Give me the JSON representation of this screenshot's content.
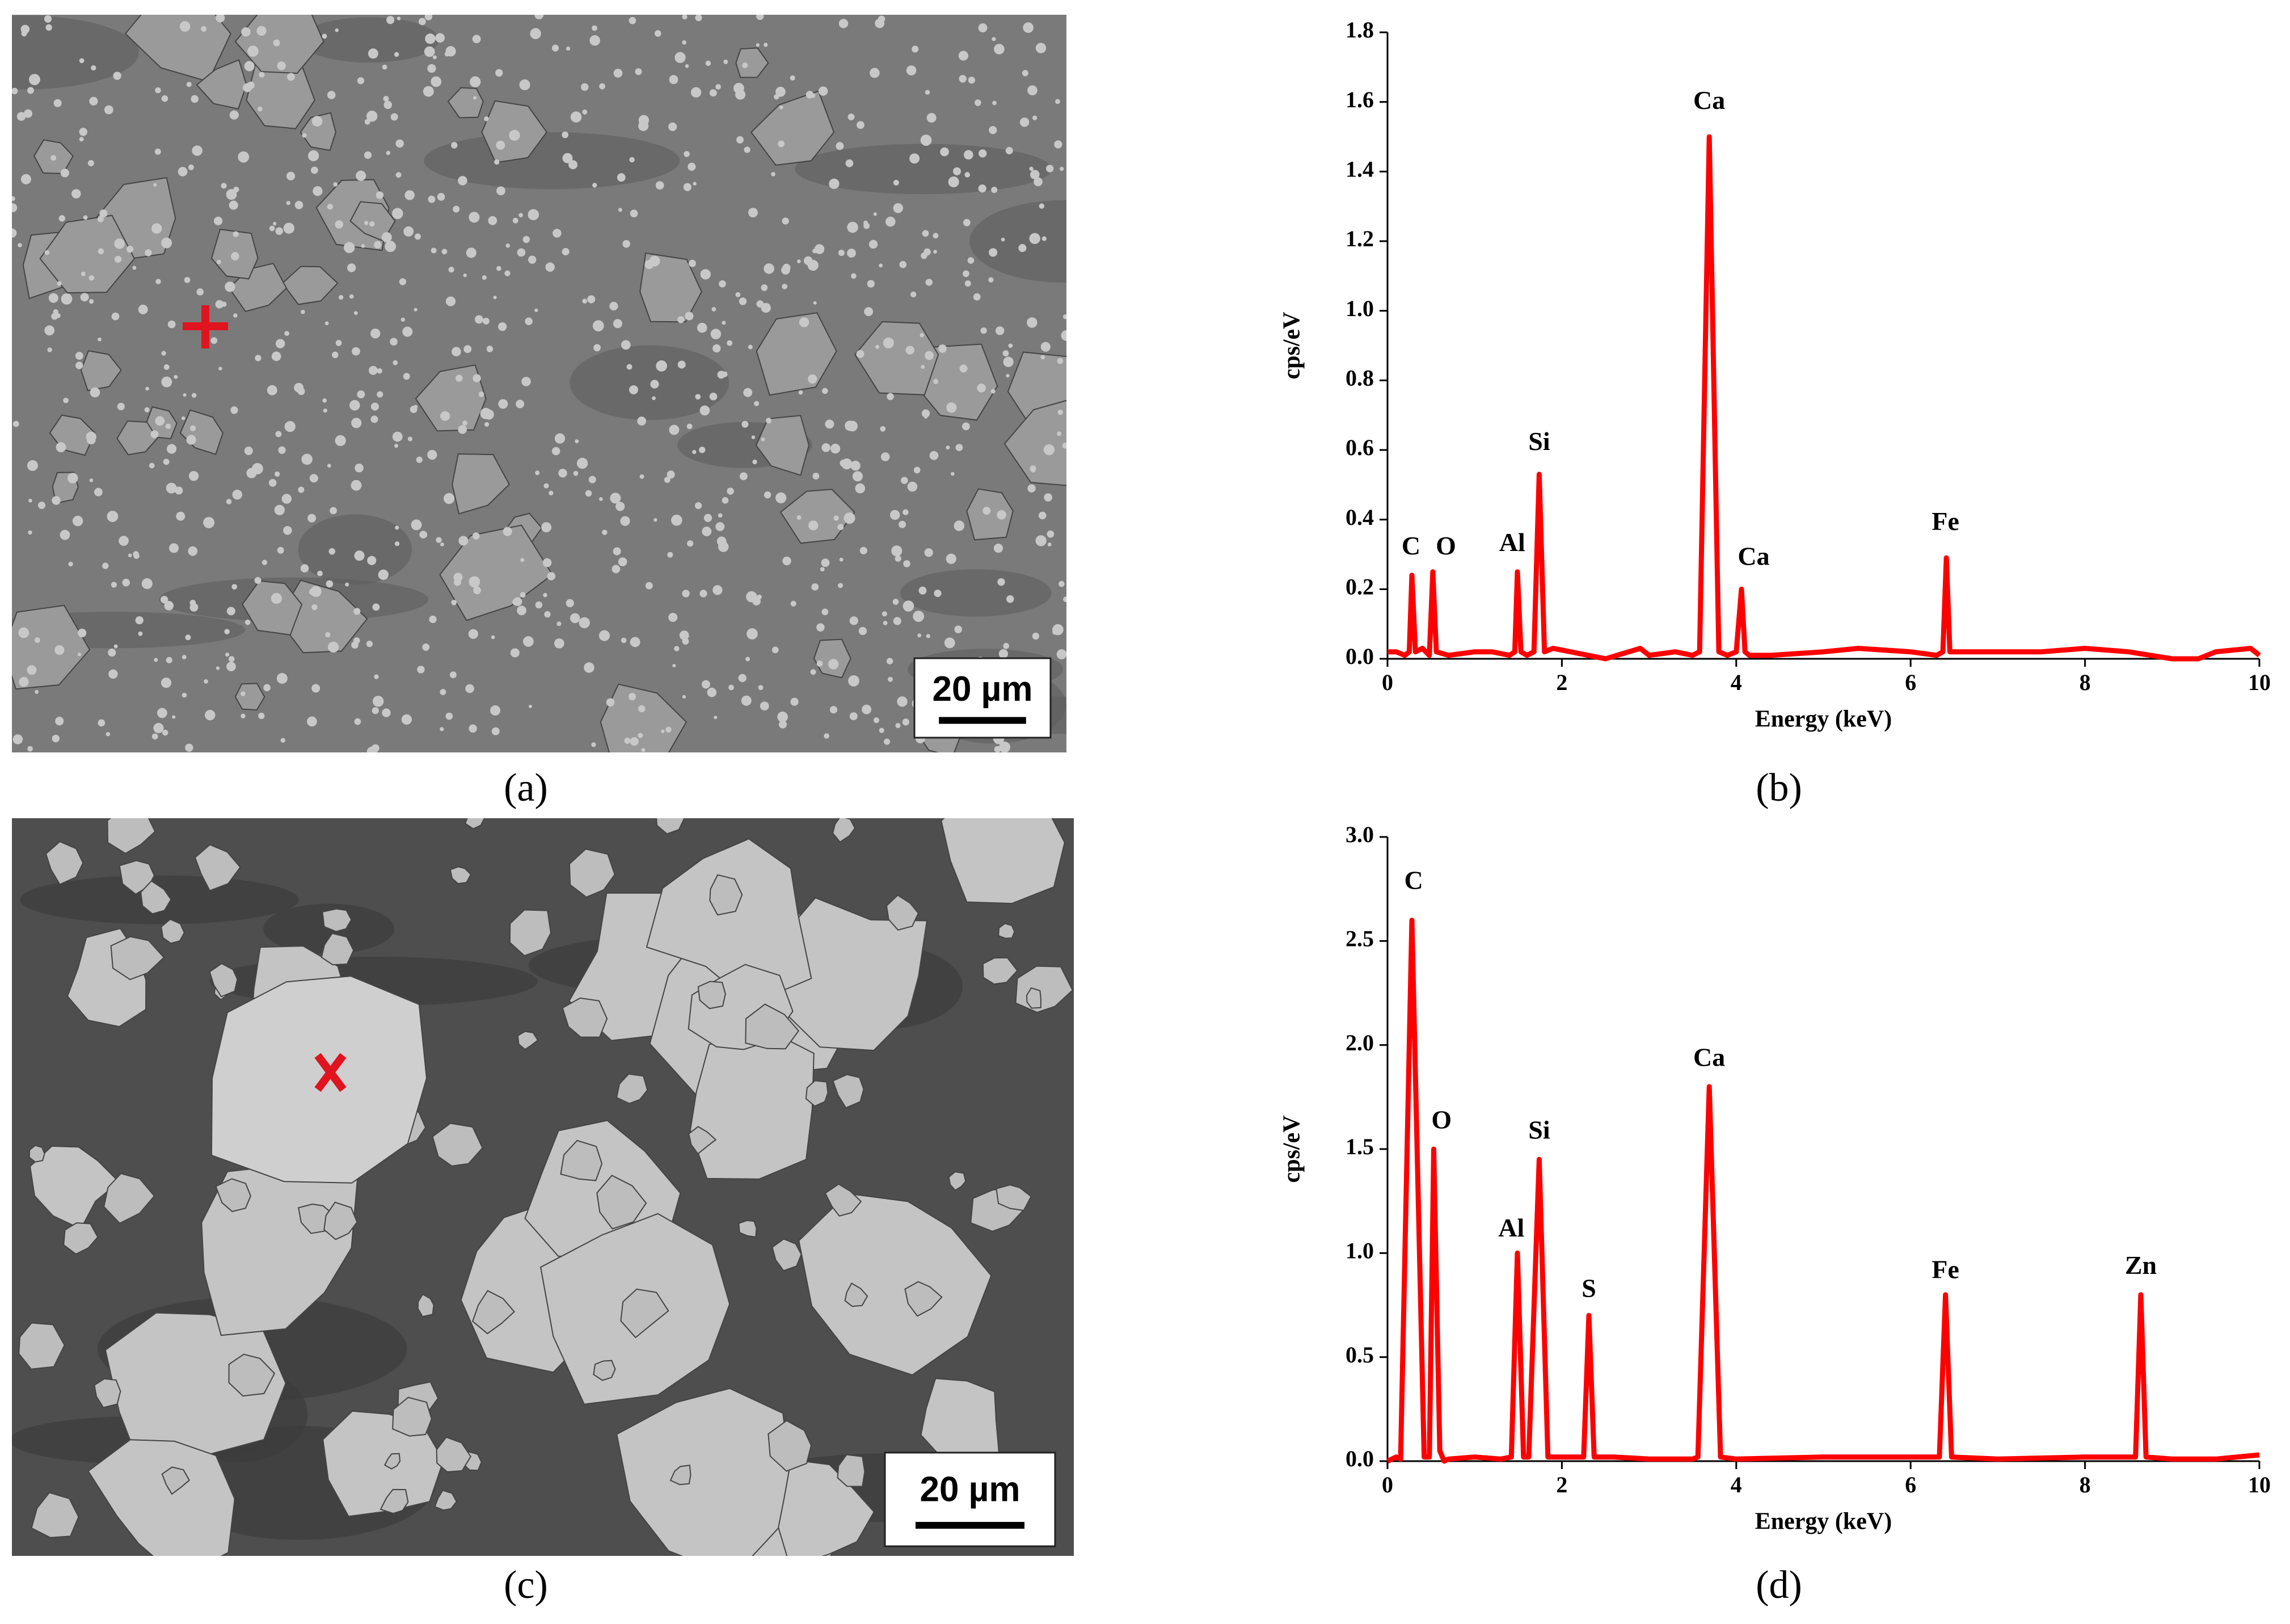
{
  "images": [
    {
      "label": "(a)",
      "scale_bar": "20 µm"
    },
    {
      "label": "(c)",
      "scale_bar": "20 µm"
    }
  ],
  "chart_data": [
    {
      "type": "line",
      "panel_label": "(b)",
      "xlabel": "Energy (keV)",
      "ylabel": "cps/eV",
      "xlim": [
        0,
        10
      ],
      "xticks": [
        0,
        2,
        4,
        6,
        8,
        10
      ],
      "ylim": [
        0,
        1.8
      ],
      "yticks": [
        {
          "value": 0,
          "label": "0.0"
        },
        0.2,
        0.4,
        0.6,
        0.8,
        {
          "value": 1,
          "label": "1.0"
        },
        1.2,
        1.4,
        1.6,
        1.8
      ],
      "x": [
        0,
        0.1,
        0.2,
        0.25,
        0.28,
        0.32,
        0.4,
        0.48,
        0.52,
        0.56,
        0.7,
        1.0,
        1.2,
        1.4,
        1.46,
        1.49,
        1.53,
        1.6,
        1.68,
        1.74,
        1.8,
        1.9,
        2.1,
        2.5,
        2.9,
        3.0,
        3.3,
        3.5,
        3.58,
        3.69,
        3.8,
        3.9,
        4.0,
        4.06,
        4.1,
        4.15,
        4.4,
        5.0,
        5.4,
        6.0,
        6.3,
        6.37,
        6.41,
        6.45,
        6.6,
        7.0,
        7.5,
        8.0,
        8.5,
        9.0,
        9.3,
        9.5,
        9.9,
        10
      ],
      "series": [
        {
          "color": "#ff0000",
          "values": [
            0.02,
            0.02,
            0.01,
            0.02,
            0.24,
            0.02,
            0.03,
            0.01,
            0.25,
            0.02,
            0.01,
            0.02,
            0.02,
            0.01,
            0.02,
            0.25,
            0.02,
            0.01,
            0.02,
            0.53,
            0.02,
            0.03,
            0.02,
            0.0,
            0.03,
            0.01,
            0.02,
            0.01,
            0.02,
            1.5,
            0.02,
            0.01,
            0.02,
            0.2,
            0.02,
            0.01,
            0.01,
            0.02,
            0.03,
            0.02,
            0.01,
            0.02,
            0.29,
            0.02,
            0.02,
            0.02,
            0.02,
            0.03,
            0.02,
            0.0,
            0.0,
            0.02,
            0.03,
            0.01
          ]
        }
      ],
      "annotations": [
        {
          "text": "C",
          "x": 0.27,
          "y": 0.3
        },
        {
          "text": "O",
          "x": 0.67,
          "y": 0.3
        },
        {
          "text": "Al",
          "x": 1.43,
          "y": 0.31
        },
        {
          "text": "Si",
          "x": 1.74,
          "y": 0.6
        },
        {
          "text": "Ca",
          "x": 3.69,
          "y": 1.58
        },
        {
          "text": "Ca",
          "x": 4.2,
          "y": 0.27
        },
        {
          "text": "Fe",
          "x": 6.4,
          "y": 0.37
        }
      ]
    },
    {
      "type": "line",
      "panel_label": "(d)",
      "xlabel": "Energy (keV)",
      "ylabel": "cps/eV",
      "xlim": [
        0,
        10
      ],
      "xticks": [
        0,
        2,
        4,
        6,
        8,
        10
      ],
      "ylim": [
        0,
        3
      ],
      "yticks": [
        {
          "value": 0,
          "label": "0.0"
        },
        0.5,
        {
          "value": 1,
          "label": "1.0"
        },
        1.5,
        {
          "value": 2,
          "label": "2.0"
        },
        2.5,
        {
          "value": 3,
          "label": "3.0"
        }
      ],
      "x": [
        0,
        0.1,
        0.15,
        0.28,
        0.42,
        0.48,
        0.53,
        0.6,
        0.65,
        0.7,
        1.0,
        1.3,
        1.42,
        1.49,
        1.56,
        1.62,
        1.74,
        1.84,
        2.0,
        2.25,
        2.31,
        2.37,
        2.6,
        3.0,
        3.5,
        3.56,
        3.69,
        3.82,
        4.0,
        5.0,
        5.5,
        6.0,
        6.33,
        6.4,
        6.47,
        7.0,
        8.0,
        8.5,
        8.58,
        8.64,
        8.7,
        9.0,
        9.5,
        10
      ],
      "series": [
        {
          "color": "#ff0000",
          "values": [
            0.0,
            0.02,
            0.01,
            2.6,
            0.02,
            0.02,
            1.5,
            0.05,
            0.0,
            0.01,
            0.02,
            0.01,
            0.02,
            1.0,
            0.02,
            0.02,
            1.45,
            0.02,
            0.02,
            0.02,
            0.7,
            0.02,
            0.02,
            0.01,
            0.01,
            0.02,
            1.8,
            0.02,
            0.01,
            0.02,
            0.02,
            0.02,
            0.02,
            0.8,
            0.02,
            0.01,
            0.02,
            0.02,
            0.02,
            0.8,
            0.02,
            0.01,
            0.01,
            0.03
          ]
        }
      ],
      "annotations": [
        {
          "text": "C",
          "x": 0.3,
          "y": 2.75
        },
        {
          "text": "O",
          "x": 0.62,
          "y": 1.6
        },
        {
          "text": "Al",
          "x": 1.42,
          "y": 1.08
        },
        {
          "text": "Si",
          "x": 1.74,
          "y": 1.55
        },
        {
          "text": "S",
          "x": 2.31,
          "y": 0.79
        },
        {
          "text": "Ca",
          "x": 3.69,
          "y": 1.9
        },
        {
          "text": "Fe",
          "x": 6.4,
          "y": 0.88
        },
        {
          "text": "Zn",
          "x": 8.64,
          "y": 0.9
        }
      ]
    }
  ]
}
